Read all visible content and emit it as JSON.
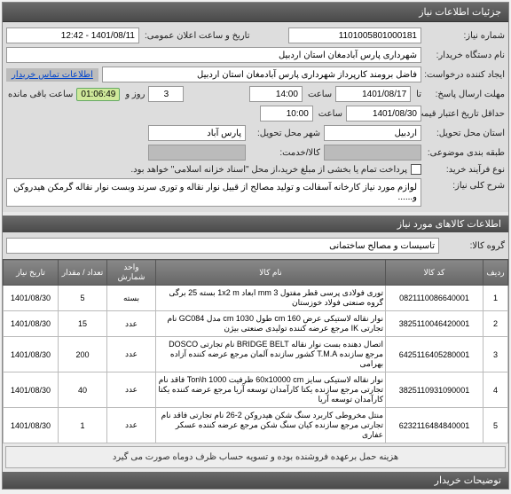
{
  "panel_title": "جزئیات اطلاعات نیاز",
  "labels": {
    "need_no": "شماره نیاز:",
    "announce_dt": "تاریخ و ساعت اعلان عمومی:",
    "buyer_org": "نام دستگاه خریدار:",
    "requester": "ایجاد کننده درخواست:",
    "buyer_contact": "اطلاعات تماس خریدار",
    "reply_deadline": "مهلت ارسال پاسخ:",
    "until": "تا",
    "time": "ساعت",
    "days_and": "روز و",
    "remaining": "ساعت باقی مانده",
    "price_valid": "حداقل تاریخ اعتبار قیمت:",
    "deliver_place": "شهر محل تحویل:",
    "deliver_province": "استان محل تحویل:",
    "budget_row": "طبقه بندی موضوعی:",
    "goods_service": "کالا/خدمت:",
    "buy_process": "نوع فرآیند خرید:",
    "general_desc": "شرح کلی نیاز:",
    "items_info": "اطلاعات کالاهای مورد نیاز",
    "goods_group": "گروه کالا:",
    "buyer_notes": "توضیحات خریدار"
  },
  "values": {
    "need_no": "1101005801000181",
    "announce_dt": "1401/08/11 - 12:42",
    "buyer_org": "شهرداری پارس آبادمغان استان اردبیل",
    "requester": "فاضل برومند کارپرداز شهرداری پارس آبادمغان استان اردبیل",
    "reply_date": "1401/08/17",
    "reply_time": "14:00",
    "days_left": "3",
    "countdown": "01:06:49",
    "price_valid_date": "1401/08/30",
    "price_valid_time": "10:00",
    "province": "اردبیل",
    "city": "پارس آباد",
    "budget_row": "",
    "goods_service": "",
    "buy_process_text": "پرداخت تمام یا بخشی از مبلغ خرید،از محل \"اسناد خزانه اسلامی\" خواهد بود.",
    "general_desc": "لوازم مورد نیاز کارخانه آسفالت و تولید مصالح از قبیل نوار نقاله و توری سرند وبست نوار نقاله گرمکن هیدروکن و......",
    "goods_group": "تاسیسات و مصالح ساختمانی",
    "shipping_note": "هزینه حمل برعهده فروشنده بوده و تسویه حساب ظرف دوماه صورت می گیرد"
  },
  "table": {
    "headers": {
      "idx": "ردیف",
      "code": "کد کالا",
      "name": "نام کالا",
      "unit": "واحد شمارش",
      "qty": "تعداد / مقدار",
      "date": "تاریخ نیاز"
    },
    "rows": [
      {
        "idx": "1",
        "code": "0821110086640001",
        "name": "توری فولادی پرسی قطر مفتول mm 3 ابعاد 1x2 m بسته 25 برگی گروه صنعتی فولاد خوزستان",
        "unit": "بسته",
        "qty": "5",
        "date": "1401/08/30"
      },
      {
        "idx": "2",
        "code": "3825110046420001",
        "name": "نوار نقاله لاستیکی عرض cm 160 طول 1030 cm مدل GC084 نام تجارتی IK مرجع عرضه کننده تولیدی صنعتی بیژن",
        "unit": "عدد",
        "qty": "15",
        "date": "1401/08/30"
      },
      {
        "idx": "3",
        "code": "6425116405280001",
        "name": "اتصال دهنده بست نوار نقاله BRIDGE BELT نام تجارتی DOSCO مرجع سازنده T.M.A کشور سازنده آلمان مرجع عرضه کننده آزاده بهرامی",
        "unit": "عدد",
        "qty": "200",
        "date": "1401/08/30"
      },
      {
        "idx": "4",
        "code": "3825110931090001",
        "name": "نوار نقاله لاستیکی سایز 60x10000 cm ظرفیت Ton\\h 1000 فاقد نام تجارتی مرجع سازنده یکتا کارآمدان توسعه آریا مرجع عرضه کننده یکتا کارآمدان توسعه آریا",
        "unit": "عدد",
        "qty": "40",
        "date": "1401/08/30"
      },
      {
        "idx": "5",
        "code": "6232116484840001",
        "name": "منتل مخروطی کاربرد سنگ شکن هیدروکن 2-26 نام تجارتی فاقد نام تجارتی مرجع سازنده کیان سنگ شکن مرجع عرضه کننده عسکر عفاری",
        "unit": "عدد",
        "qty": "1",
        "date": "1401/08/30"
      }
    ]
  },
  "colors": {
    "header_bg": "#5a5a5a",
    "panel_bg": "#dddddd",
    "countdown_bg": "#cfe89a"
  }
}
